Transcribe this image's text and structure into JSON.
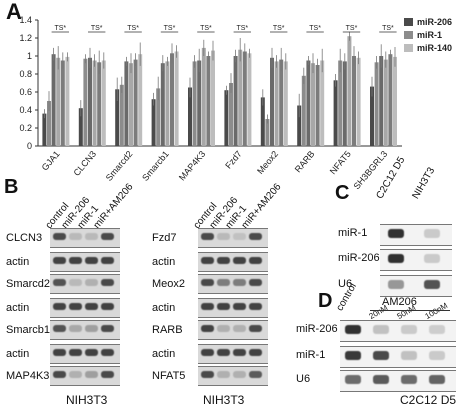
{
  "panels": {
    "A": {
      "letter": "A",
      "chart_data": {
        "type": "bar",
        "categories": [
          "GJA1",
          "CLCN3",
          "Smarcd2",
          "Smarcb1",
          "MAP4K3",
          "Fzd7",
          "Meox2",
          "RARB",
          "NFAT5",
          "SH3BGRL3"
        ],
        "series": [
          {
            "name": "miR-206",
            "values": [
              0.36,
              0.42,
              0.63,
              0.52,
              0.65,
              0.62,
              0.54,
              0.45,
              0.73,
              0.66
            ]
          },
          {
            "name": "miR-1",
            "values": [
              0.5,
              0.97,
              0.68,
              0.64,
              0.94,
              0.7,
              0.3,
              0.78,
              0.95,
              0.93
            ]
          },
          {
            "name": "",
            "values": [
              1.02,
              0.98,
              0.94,
              0.92,
              0.95,
              1.0,
              0.98,
              0.95,
              0.94,
              1.0
            ]
          },
          {
            "name": "",
            "values": [
              0.98,
              0.95,
              0.92,
              0.94,
              1.09,
              1.07,
              0.94,
              0.92,
              1.22,
              0.96
            ]
          },
          {
            "name": "",
            "values": [
              0.95,
              0.93,
              0.96,
              1.03,
              1.0,
              1.05,
              0.96,
              0.9,
              1.0,
              1.02
            ]
          },
          {
            "name": "miR-140",
            "values": [
              0.99,
              0.95,
              1.02,
              1.05,
              1.06,
              1.03,
              0.94,
              0.95,
              0.98,
              0.99
            ]
          }
        ],
        "ylim": [
          0,
          1.4
        ],
        "yticks": [
          "0",
          "0.2",
          "0.4",
          "0.6",
          "0.8",
          "1",
          "1.2",
          "1.4"
        ],
        "sig_labels": [
          "TS*",
          "TS*",
          "TS*",
          "TS*",
          "TS*",
          "TS*",
          "TS*",
          "TS*",
          "TS*",
          "TS*"
        ],
        "colors": [
          "#4a4a4a",
          "#8c8c8c",
          "#6a6a6a",
          "#a8a8a8",
          "#7c7c7c",
          "#bdbdbd"
        ],
        "legend": "top-right"
      }
    },
    "B": {
      "letter": "B",
      "left": {
        "lanes": [
          "control",
          "miR-206",
          "miR-1",
          "miR+AM206"
        ],
        "rows": [
          "CLCN3",
          "actin",
          "Smarcd2",
          "actin",
          "Smarcb1",
          "actin",
          "MAP4K3",
          "actin"
        ],
        "caption": "NIH3T3"
      },
      "right": {
        "lanes": [
          "control",
          "miR-206",
          "miR-1",
          "miR+AM206"
        ],
        "rows": [
          "Fzd7",
          "actin",
          "Meox2",
          "actin",
          "RARB",
          "actin",
          "NFAT5",
          "actin"
        ],
        "caption": "NIH3T3"
      }
    },
    "C": {
      "letter": "C",
      "lanes": [
        "C2C12 D5",
        "NIH3T3"
      ],
      "rows": [
        "miR-1",
        "miR-206",
        "U6"
      ]
    },
    "D": {
      "letter": "D",
      "lanes": [
        "control",
        "20nM",
        "50nM",
        "100nM"
      ],
      "group_label": "AM206",
      "rows": [
        "miR-206",
        "miR-1",
        "U6"
      ],
      "caption": "C2C12 D5"
    }
  }
}
